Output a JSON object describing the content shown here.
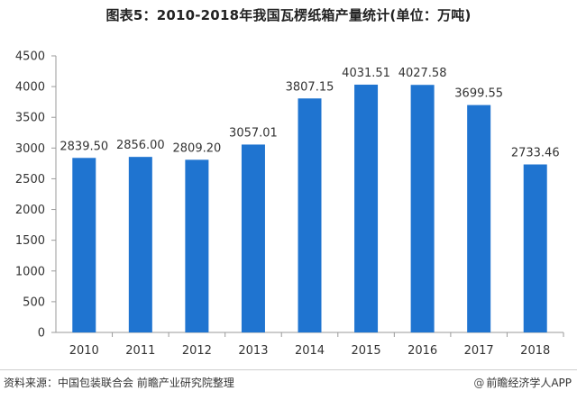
{
  "title": "图表5：2010-2018年我国瓦楞纸箱产量统计(单位：万吨)",
  "footer": {
    "source": "资料来源：中国包装联合会 前瞻产业研究院整理",
    "brand": "前瞻经济学人APP",
    "brand_icon": "at-icon"
  },
  "colors": {
    "bar": "#1f74d0",
    "axis": "#9a9a9a",
    "text": "#333333"
  },
  "chart_data": {
    "type": "bar",
    "title": "图表5：2010-2018年我国瓦楞纸箱产量统计(单位：万吨)",
    "categories": [
      "2010",
      "2011",
      "2012",
      "2013",
      "2014",
      "2015",
      "2016",
      "2017",
      "2018"
    ],
    "values": [
      2839.5,
      2856.0,
      2809.2,
      3057.01,
      3807.15,
      4031.51,
      4027.58,
      3699.55,
      2733.46
    ],
    "value_labels": [
      "2839.50",
      "2856.00",
      "2809.20",
      "3057.01",
      "3807.15",
      "4031.51",
      "4027.58",
      "3699.55",
      "2733.46"
    ],
    "yticks": [
      "0",
      "500",
      "1000",
      "1500",
      "2000",
      "2500",
      "3000",
      "3500",
      "4000",
      "4500"
    ],
    "ylim": [
      0,
      4500
    ],
    "grid": false,
    "legend": "none"
  }
}
